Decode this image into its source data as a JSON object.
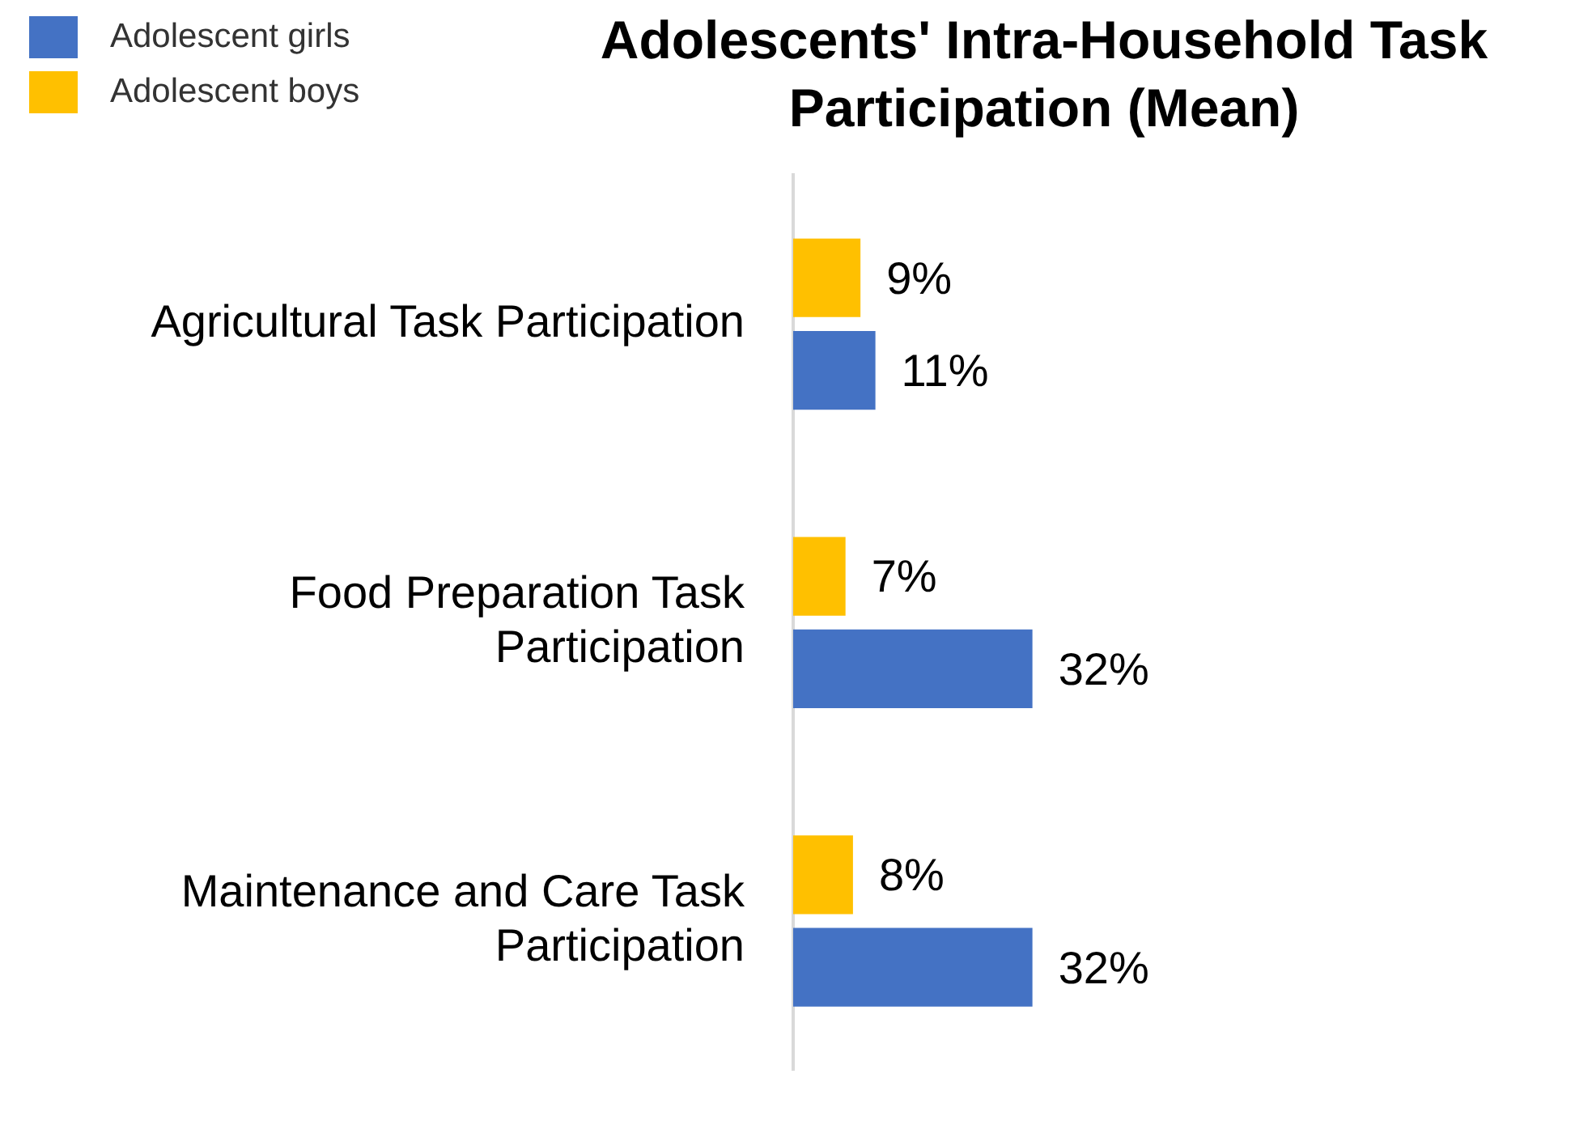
{
  "chart_data": {
    "type": "bar",
    "orientation": "horizontal",
    "title": "Adolescents' Intra-Household Task Participation (Mean)",
    "categories": [
      "Agricultural Task Participation",
      "Food Preparation Task Participation",
      "Maintenance and Care Task Participation"
    ],
    "series": [
      {
        "name": "Adolescent boys",
        "color": "#ffc000",
        "values": [
          9,
          7,
          8
        ],
        "value_labels": [
          "9%",
          "7%",
          "8%"
        ]
      },
      {
        "name": "Adolescent girls",
        "color": "#4472c4",
        "values": [
          11,
          32,
          32
        ],
        "value_labels": [
          "11%",
          "32%",
          "32%"
        ]
      }
    ],
    "tick_labels": "y",
    "grid": false,
    "legend": "top left"
  }
}
